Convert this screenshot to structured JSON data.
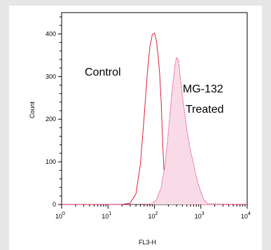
{
  "chart_data": {
    "type": "line",
    "xlabel": "FL3-H",
    "ylabel": "Count",
    "xscale": "log",
    "xlim": [
      1,
      10000
    ],
    "ylim": [
      0,
      450
    ],
    "x_ticks": [
      {
        "base": "10",
        "exp": "0"
      },
      {
        "base": "10",
        "exp": "1"
      },
      {
        "base": "10",
        "exp": "2"
      },
      {
        "base": "10",
        "exp": "3"
      },
      {
        "base": "10",
        "exp": "4"
      }
    ],
    "y_ticks": [
      "0",
      "100",
      "200",
      "300",
      "400"
    ],
    "y_tick_values": [
      0,
      100,
      200,
      300,
      400
    ],
    "annotations": [
      {
        "lines": [
          "Control"
        ],
        "series": "control"
      },
      {
        "lines": [
          "MG-132",
          "Treated"
        ],
        "series": "treated"
      }
    ],
    "series": [
      {
        "key": "control",
        "color": "#e0203a",
        "style": "solid",
        "fill": "none",
        "x": [
          1,
          20,
          30,
          40,
          50,
          60,
          70,
          80,
          90,
          100,
          110,
          120,
          130,
          140,
          150,
          160,
          180,
          200,
          250,
          300,
          400,
          10000
        ],
        "y": [
          0,
          0,
          3,
          25,
          95,
          205,
          305,
          370,
          398,
          402,
          385,
          350,
          305,
          240,
          150,
          85,
          30,
          12,
          4,
          2,
          0,
          0
        ]
      },
      {
        "key": "treated",
        "color": "#d4237a",
        "fillColor": "#f9dbe8",
        "style": "dotted",
        "fill": "area",
        "x": [
          1,
          80,
          110,
          140,
          170,
          200,
          230,
          260,
          280,
          300,
          330,
          360,
          400,
          450,
          500,
          550,
          600,
          650,
          700,
          750,
          800,
          900,
          1000,
          1100,
          1200,
          1400,
          10000
        ],
        "y": [
          0,
          0,
          10,
          40,
          95,
          170,
          245,
          300,
          330,
          345,
          338,
          300,
          255,
          215,
          175,
          150,
          125,
          110,
          95,
          80,
          65,
          45,
          30,
          18,
          10,
          2,
          0
        ]
      }
    ]
  }
}
